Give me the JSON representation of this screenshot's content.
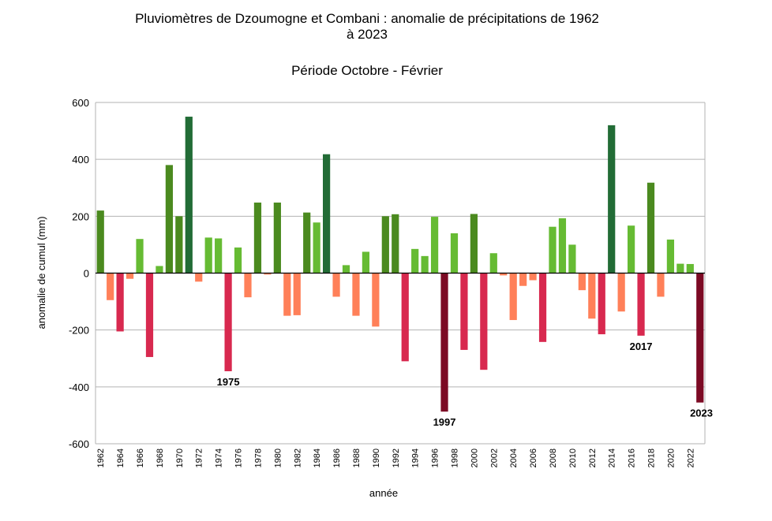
{
  "chart_data": {
    "type": "bar",
    "title_line1": "Pluviomètres de Dzoumogne et Combani : anomalie de précipitations de 1962",
    "title_line2": "à 2023",
    "subtitle": "Période Octobre - Février",
    "xlabel": "année",
    "ylabel": "anomalie de cumul (mm)",
    "ylim": [
      -600,
      600
    ],
    "yticks": [
      600,
      400,
      200,
      0,
      -200,
      -400,
      -600
    ],
    "grid": true,
    "legend": "none",
    "categories": [
      "1962",
      "1963",
      "1964",
      "1965",
      "1966",
      "1967",
      "1968",
      "1969",
      "1970",
      "1971",
      "1972",
      "1973",
      "1974",
      "1975",
      "1976",
      "1977",
      "1978",
      "1979",
      "1980",
      "1981",
      "1982",
      "1983",
      "1984",
      "1985",
      "1986",
      "1987",
      "1988",
      "1989",
      "1990",
      "1991",
      "1992",
      "1993",
      "1994",
      "1995",
      "1996",
      "1997",
      "1998",
      "1999",
      "2000",
      "2001",
      "2002",
      "2003",
      "2004",
      "2005",
      "2006",
      "2007",
      "2008",
      "2009",
      "2010",
      "2011",
      "2012",
      "2013",
      "2014",
      "2015",
      "2016",
      "2017",
      "2018",
      "2019",
      "2020",
      "2021",
      "2022",
      "2023"
    ],
    "tick_labels": [
      "1962",
      "1964",
      "1966",
      "1968",
      "1970",
      "1972",
      "1974",
      "1976",
      "1978",
      "1980",
      "1982",
      "1984",
      "1986",
      "1988",
      "1990",
      "1992",
      "1994",
      "1996",
      "1998",
      "2000",
      "2002",
      "2004",
      "2006",
      "2008",
      "2010",
      "2012",
      "2014",
      "2016",
      "2018",
      "2020",
      "2022"
    ],
    "values": [
      220,
      -95,
      -205,
      -20,
      120,
      -295,
      25,
      380,
      200,
      550,
      -30,
      125,
      122,
      -345,
      90,
      -85,
      248,
      -5,
      248,
      -150,
      -148,
      213,
      178,
      418,
      -83,
      28,
      -150,
      75,
      -188,
      200,
      207,
      -310,
      85,
      60,
      198,
      -487,
      140,
      -270,
      208,
      -340,
      70,
      -8,
      -165,
      -45,
      -25,
      -242,
      163,
      193,
      100,
      -60,
      -160,
      -215,
      520,
      -135,
      167,
      -220,
      318,
      -83,
      118,
      33,
      32,
      -455
    ],
    "colors": {
      "strong_positive": "#226c36",
      "positive": "#4b8a1f",
      "light_positive": "#66bb33",
      "light_negative": "#ff8059",
      "negative": "#d8294f",
      "strong_negative": "#7c0a24",
      "grid": "#b3b3b3",
      "axis": "#000000"
    },
    "annotations": [
      {
        "label": "1975",
        "year": "1975"
      },
      {
        "label": "1997",
        "year": "1997"
      },
      {
        "label": "2017",
        "year": "2017"
      },
      {
        "label": "2023",
        "year": "2023"
      }
    ]
  }
}
